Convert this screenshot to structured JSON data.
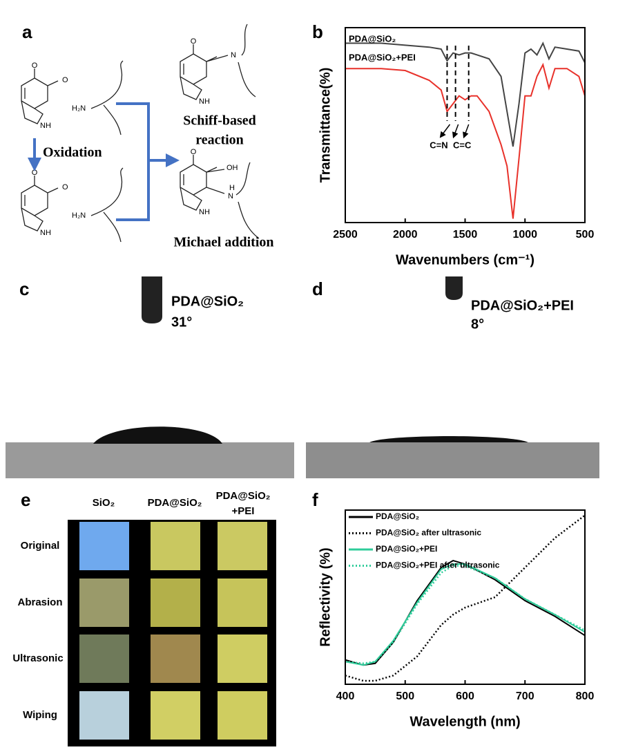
{
  "panel_labels": [
    "a",
    "b",
    "c",
    "d",
    "e",
    "f"
  ],
  "panel_a": {
    "oxidation": "Oxidation",
    "schiff": [
      "Schiff-based",
      "reaction"
    ],
    "michael": "Michael addition",
    "atoms": [
      "O",
      "O",
      "NH",
      "O",
      "O",
      "NH",
      "H₂N",
      "H₂N",
      "O",
      "N",
      "NH",
      "O",
      "OH",
      "H",
      "N",
      "NH"
    ]
  },
  "panel_c": {
    "sample": "PDA@SiO₂",
    "angle": "31°"
  },
  "panel_d": {
    "sample": "PDA@SiO₂+PEI",
    "angle": "8°"
  },
  "panel_e": {
    "columns": [
      "SiO₂",
      "PDA@SiO₂",
      "PDA@SiO₂",
      "+PEI"
    ],
    "rows": [
      "Original",
      "Abrasion",
      "Ultrasonic",
      "Wiping"
    ]
  },
  "chart_data": [
    {
      "type": "line",
      "xlabel": "Wavenumbers (cm⁻¹)",
      "ylabel": "Transmittance(%)",
      "x": [
        2500,
        2200,
        2000,
        1800,
        1700,
        1650,
        1600,
        1550,
        1500,
        1450,
        1400,
        1300,
        1200,
        1150,
        1100,
        1050,
        1000,
        950,
        900,
        850,
        800,
        750,
        650,
        550,
        500
      ],
      "series": [
        {
          "name": "PDA@SiO₂",
          "color": "#444444",
          "style": "solid",
          "values": [
            92,
            92,
            91,
            90,
            89,
            83,
            87,
            86,
            87,
            87,
            86,
            84,
            75,
            57,
            39,
            61,
            87,
            89,
            86,
            92,
            84,
            90,
            89,
            88,
            82
          ]
        },
        {
          "name": "PDA@SiO₂+PEI",
          "color": "#e8312a",
          "style": "solid",
          "values": [
            79,
            79,
            78,
            73,
            68,
            57,
            61,
            65,
            63,
            65,
            65,
            57,
            40,
            29,
            2,
            33,
            65,
            65,
            75,
            81,
            69,
            79,
            79,
            75,
            65
          ]
        }
      ],
      "xlim": [
        2500,
        500
      ],
      "xticks": [
        2500,
        2000,
        1500,
        1000,
        500
      ],
      "ylim": [
        0,
        100
      ],
      "reference_lines": [
        1650,
        1580,
        1470
      ],
      "annotations": [
        "C=N",
        "C=C"
      ]
    },
    {
      "type": "line",
      "xlabel": "Wavelength (nm)",
      "ylabel": "Reflectivity (%)",
      "x": [
        400,
        430,
        450,
        480,
        520,
        560,
        580,
        600,
        650,
        700,
        750,
        800
      ],
      "series": [
        {
          "name": "PDA@SiO₂",
          "color": "#000000",
          "style": "solid",
          "values": [
            14,
            11,
            12,
            24,
            48,
            67,
            71,
            69,
            60,
            48,
            39,
            28
          ]
        },
        {
          "name": "PDA@SiO₂ after ultrasonic",
          "color": "#000000",
          "style": "dotted",
          "values": [
            5,
            2,
            2,
            5,
            16,
            34,
            40,
            44,
            50,
            67,
            84,
            97
          ]
        },
        {
          "name": "PDA@SiO₂+PEI",
          "color": "#2ecc9a",
          "style": "solid",
          "values": [
            13,
            11,
            13,
            25,
            47,
            66,
            69,
            69,
            61,
            49,
            40,
            30
          ]
        },
        {
          "name": "PDA@SiO₂+PEI after ultrasonic",
          "color": "#2ecc9a",
          "style": "dotted",
          "values": [
            13,
            12,
            13,
            24,
            46,
            64,
            68,
            68,
            61,
            49,
            40,
            31
          ]
        }
      ],
      "xlim": [
        400,
        800
      ],
      "xticks": [
        400,
        500,
        600,
        700,
        800
      ],
      "ylim": [
        0,
        100
      ]
    }
  ]
}
